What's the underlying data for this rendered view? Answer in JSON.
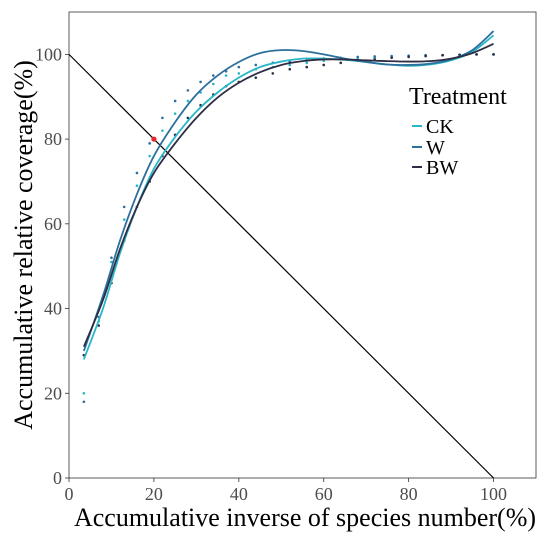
{
  "chart_data": {
    "type": "line",
    "xlabel": "Accumulative inverse of species number(%)",
    "ylabel": "Accumulative relative coverage(%)",
    "xlim": [
      0,
      110
    ],
    "ylim": [
      0,
      110
    ],
    "x_ticks": [
      "0",
      "20",
      "40",
      "60",
      "80",
      "100"
    ],
    "y_ticks": [
      "0",
      "20",
      "40",
      "60",
      "80",
      "100"
    ],
    "grid": false,
    "legend": {
      "title": "Treatment",
      "placement": "top-right",
      "entries": [
        "CK",
        "W",
        "BW"
      ]
    },
    "series": [
      {
        "name": "CK",
        "color": "#29b6c8",
        "fitted": [
          [
            3.5,
            28
          ],
          [
            8,
            40
          ],
          [
            12,
            53
          ],
          [
            16,
            64
          ],
          [
            20,
            73
          ],
          [
            25,
            80.5
          ],
          [
            30,
            86.5
          ],
          [
            35,
            91
          ],
          [
            40,
            94.5
          ],
          [
            45,
            97
          ],
          [
            50,
            98.3
          ],
          [
            55,
            99
          ],
          [
            60,
            99
          ],
          [
            65,
            98.7
          ],
          [
            70,
            98.2
          ],
          [
            75,
            97.6
          ],
          [
            80,
            97.3
          ],
          [
            85,
            97.6
          ],
          [
            90,
            98.6
          ],
          [
            95,
            100.6
          ],
          [
            100,
            104.5
          ]
        ],
        "points": [
          [
            3.5,
            20
          ],
          [
            7,
            37
          ],
          [
            10,
            51
          ],
          [
            13,
            61
          ],
          [
            16,
            69
          ],
          [
            19,
            76
          ],
          [
            22,
            82
          ],
          [
            25,
            86
          ],
          [
            28,
            89
          ],
          [
            31,
            91
          ],
          [
            34,
            93
          ],
          [
            37,
            95
          ],
          [
            40,
            95.5
          ],
          [
            44,
            96.5
          ],
          [
            48,
            97
          ],
          [
            52,
            97.5
          ],
          [
            56,
            98
          ],
          [
            60,
            98.5
          ],
          [
            64,
            99
          ],
          [
            68,
            99
          ],
          [
            72,
            99.2
          ],
          [
            76,
            99.4
          ],
          [
            80,
            99.5
          ],
          [
            84,
            99.6
          ],
          [
            88,
            99.8
          ],
          [
            92,
            99.9
          ],
          [
            96,
            100
          ],
          [
            100,
            100
          ]
        ]
      },
      {
        "name": "W",
        "color": "#2b6f9c",
        "fitted": [
          [
            3.5,
            30
          ],
          [
            8,
            43
          ],
          [
            12,
            56
          ],
          [
            16,
            67
          ],
          [
            20,
            76
          ],
          [
            25,
            84
          ],
          [
            30,
            90.5
          ],
          [
            35,
            95
          ],
          [
            40,
            98.2
          ],
          [
            45,
            100.3
          ],
          [
            50,
            101
          ],
          [
            55,
            100.8
          ],
          [
            60,
            100
          ],
          [
            65,
            99
          ],
          [
            70,
            98.2
          ],
          [
            75,
            97.6
          ],
          [
            80,
            97.5
          ],
          [
            85,
            97.8
          ],
          [
            90,
            98.8
          ],
          [
            95,
            101
          ],
          [
            100,
            105.5
          ]
        ],
        "points": [
          [
            3.5,
            18
          ],
          [
            7,
            38
          ],
          [
            10,
            52
          ],
          [
            13,
            64
          ],
          [
            16,
            72
          ],
          [
            19,
            79
          ],
          [
            22,
            85
          ],
          [
            25,
            89
          ],
          [
            28,
            91.5
          ],
          [
            31,
            93.5
          ],
          [
            34,
            95
          ],
          [
            37,
            96
          ],
          [
            40,
            97
          ],
          [
            44,
            97.5
          ],
          [
            48,
            98
          ],
          [
            52,
            98.3
          ],
          [
            56,
            98.6
          ],
          [
            60,
            99
          ],
          [
            64,
            99.2
          ],
          [
            68,
            99.4
          ],
          [
            72,
            99.5
          ],
          [
            76,
            99.6
          ],
          [
            80,
            99.7
          ],
          [
            84,
            99.8
          ],
          [
            88,
            99.8
          ],
          [
            92,
            99.9
          ],
          [
            96,
            100
          ],
          [
            100,
            100
          ]
        ]
      },
      {
        "name": "BW",
        "color": "#2d2d45",
        "fitted": [
          [
            3.5,
            31
          ],
          [
            8,
            42
          ],
          [
            12,
            54
          ],
          [
            16,
            64
          ],
          [
            20,
            72
          ],
          [
            25,
            79
          ],
          [
            30,
            85
          ],
          [
            35,
            89.8
          ],
          [
            40,
            93.3
          ],
          [
            45,
            95.8
          ],
          [
            50,
            97.5
          ],
          [
            55,
            98.4
          ],
          [
            60,
            98.8
          ],
          [
            65,
            98.8
          ],
          [
            70,
            98.6
          ],
          [
            75,
            98.4
          ],
          [
            80,
            98.3
          ],
          [
            85,
            98.4
          ],
          [
            90,
            99
          ],
          [
            95,
            100.3
          ],
          [
            100,
            102.5
          ]
        ],
        "points": [
          [
            3.5,
            29
          ],
          [
            7,
            36
          ],
          [
            10,
            46
          ],
          [
            13,
            56
          ],
          [
            16,
            64
          ],
          [
            19,
            70
          ],
          [
            22,
            76
          ],
          [
            25,
            81
          ],
          [
            28,
            85
          ],
          [
            31,
            88
          ],
          [
            34,
            90.5
          ],
          [
            37,
            92.5
          ],
          [
            40,
            93.5
          ],
          [
            44,
            94.5
          ],
          [
            48,
            95.5
          ],
          [
            52,
            96.5
          ],
          [
            56,
            97
          ],
          [
            60,
            97.5
          ],
          [
            64,
            98
          ],
          [
            68,
            98.5
          ],
          [
            72,
            98.8
          ],
          [
            76,
            99.2
          ],
          [
            80,
            99.4
          ],
          [
            84,
            99.6
          ],
          [
            88,
            99.8
          ],
          [
            92,
            99.9
          ],
          [
            96,
            100
          ],
          [
            100,
            100
          ]
        ]
      }
    ],
    "reference_line": {
      "from": [
        0,
        100
      ],
      "to": [
        100,
        0
      ],
      "color": "#000000"
    },
    "intersection_point": {
      "x": 20,
      "y": 80,
      "color": "#e8262b"
    }
  }
}
